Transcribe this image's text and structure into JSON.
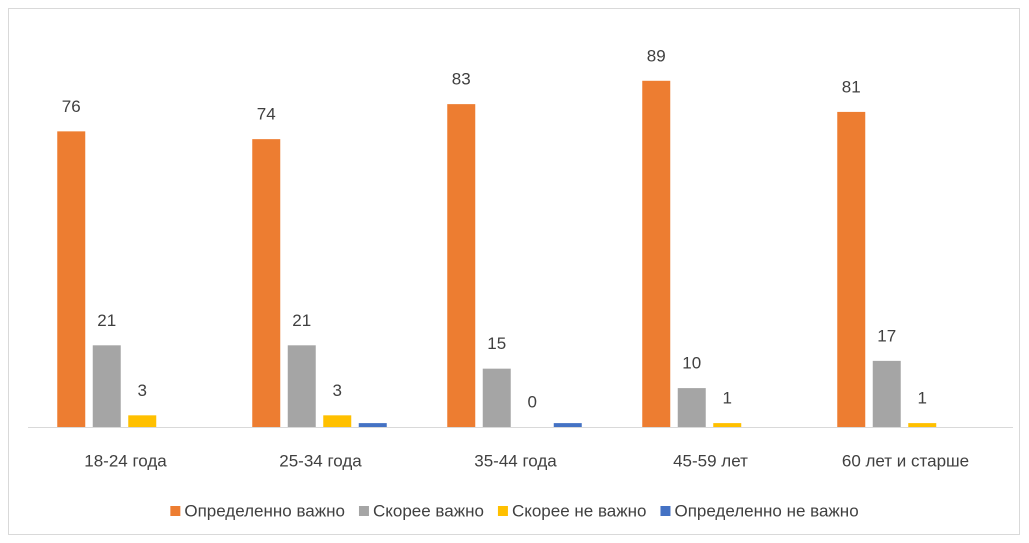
{
  "chart_data": {
    "type": "bar",
    "categories": [
      "18-24 года",
      "25-34 года",
      "35-44 года",
      "45-59 лет",
      "60 лет и старше"
    ],
    "series": [
      {
        "name": "Определенно важно",
        "color": "#ed7d31",
        "values": [
          76,
          74,
          83,
          89,
          81
        ],
        "show_labels": true
      },
      {
        "name": "Скорее важно",
        "color": "#a5a5a5",
        "values": [
          21,
          21,
          15,
          10,
          17
        ],
        "show_labels": true
      },
      {
        "name": "Скорее не важно",
        "color": "#ffc000",
        "values": [
          3,
          3,
          0,
          1,
          1
        ],
        "show_labels": true
      },
      {
        "name": "Определенно не важно",
        "color": "#4472c4",
        "values": [
          0,
          1,
          1,
          0,
          0
        ],
        "show_labels": false
      }
    ],
    "ylim": [
      0,
      100
    ],
    "grid": false,
    "legend": "bottom"
  }
}
